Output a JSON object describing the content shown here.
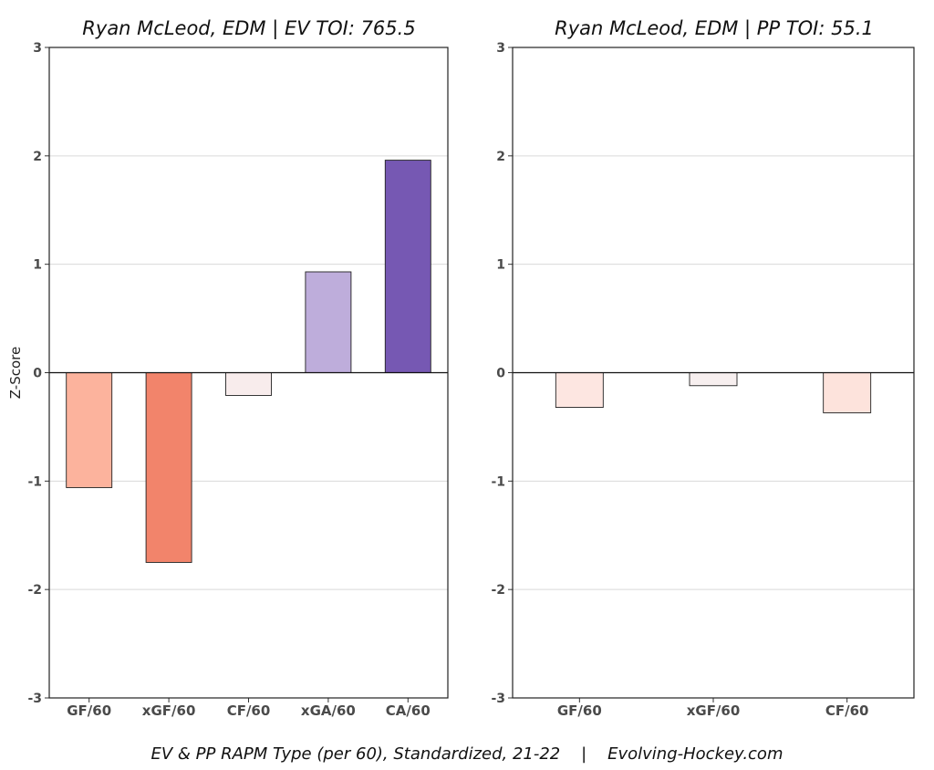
{
  "caption": "EV & PP RAPM Type (per 60), Standardized, 21-22    |    Evolving-Hockey.com",
  "chart_data": [
    {
      "type": "bar",
      "title": "Ryan McLeod, EDM  |  EV TOI: 765.5",
      "ylabel": "Z-Score",
      "xlabel": "",
      "ylim": [
        -3,
        3
      ],
      "yticks": [
        -3,
        -2,
        -1,
        0,
        1,
        2,
        3
      ],
      "grid": true,
      "categories": [
        "GF/60",
        "xGF/60",
        "CF/60",
        "xGA/60",
        "CA/60"
      ],
      "values": [
        -1.06,
        -1.75,
        -0.21,
        0.93,
        1.96
      ],
      "colors": [
        "#fcb39d",
        "#f2846b",
        "#f8ecec",
        "#beaddb",
        "#7658b3"
      ]
    },
    {
      "type": "bar",
      "title": "Ryan McLeod, EDM  |  PP TOI: 55.1",
      "ylabel": "",
      "xlabel": "",
      "ylim": [
        -3,
        3
      ],
      "yticks": [
        -3,
        -2,
        -1,
        0,
        1,
        2,
        3
      ],
      "grid": true,
      "categories": [
        "GF/60",
        "xGF/60",
        "CF/60"
      ],
      "values": [
        -0.32,
        -0.12,
        -0.37
      ],
      "colors": [
        "#fde6e1",
        "#f7efef",
        "#fde3dc"
      ]
    }
  ]
}
